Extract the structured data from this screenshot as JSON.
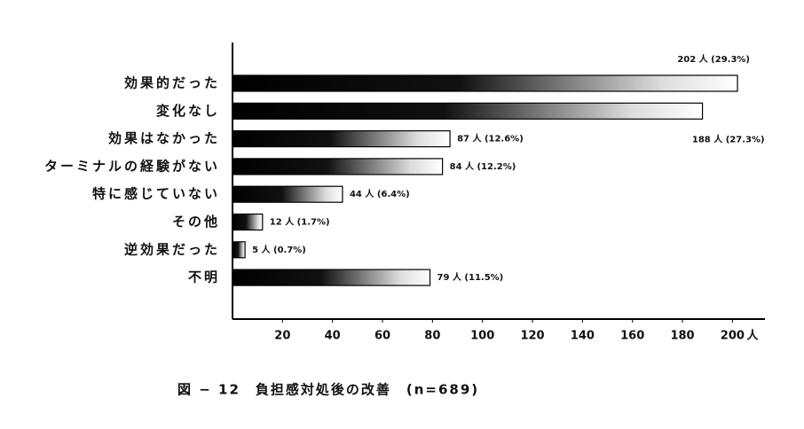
{
  "chart_data": {
    "type": "bar",
    "orientation": "horizontal",
    "title": "図 − 12　負担感対処後の改善　(n=689)",
    "x_label": "人",
    "categories": [
      "効果的だった",
      "変化なし",
      "効果はなかった",
      "ターミナルの経験がない",
      "特に感じていない",
      "その他",
      "逆効果だった",
      "不明"
    ],
    "values": [
      202,
      188,
      87,
      84,
      44,
      12,
      5,
      79
    ],
    "value_labels": [
      "202 人 (29.3%)",
      "188 人 (27.3%)",
      "87 人 (12.6%)",
      "84 人 (12.2%)",
      "44 人 (6.4%)",
      "12 人 (1.7%)",
      "5 人 (0.7%)",
      "79 人 (11.5%)"
    ],
    "xlim": [
      0,
      213
    ],
    "xticks": [
      20,
      40,
      60,
      80,
      100,
      120,
      140,
      160,
      180,
      200
    ],
    "grid": false
  }
}
